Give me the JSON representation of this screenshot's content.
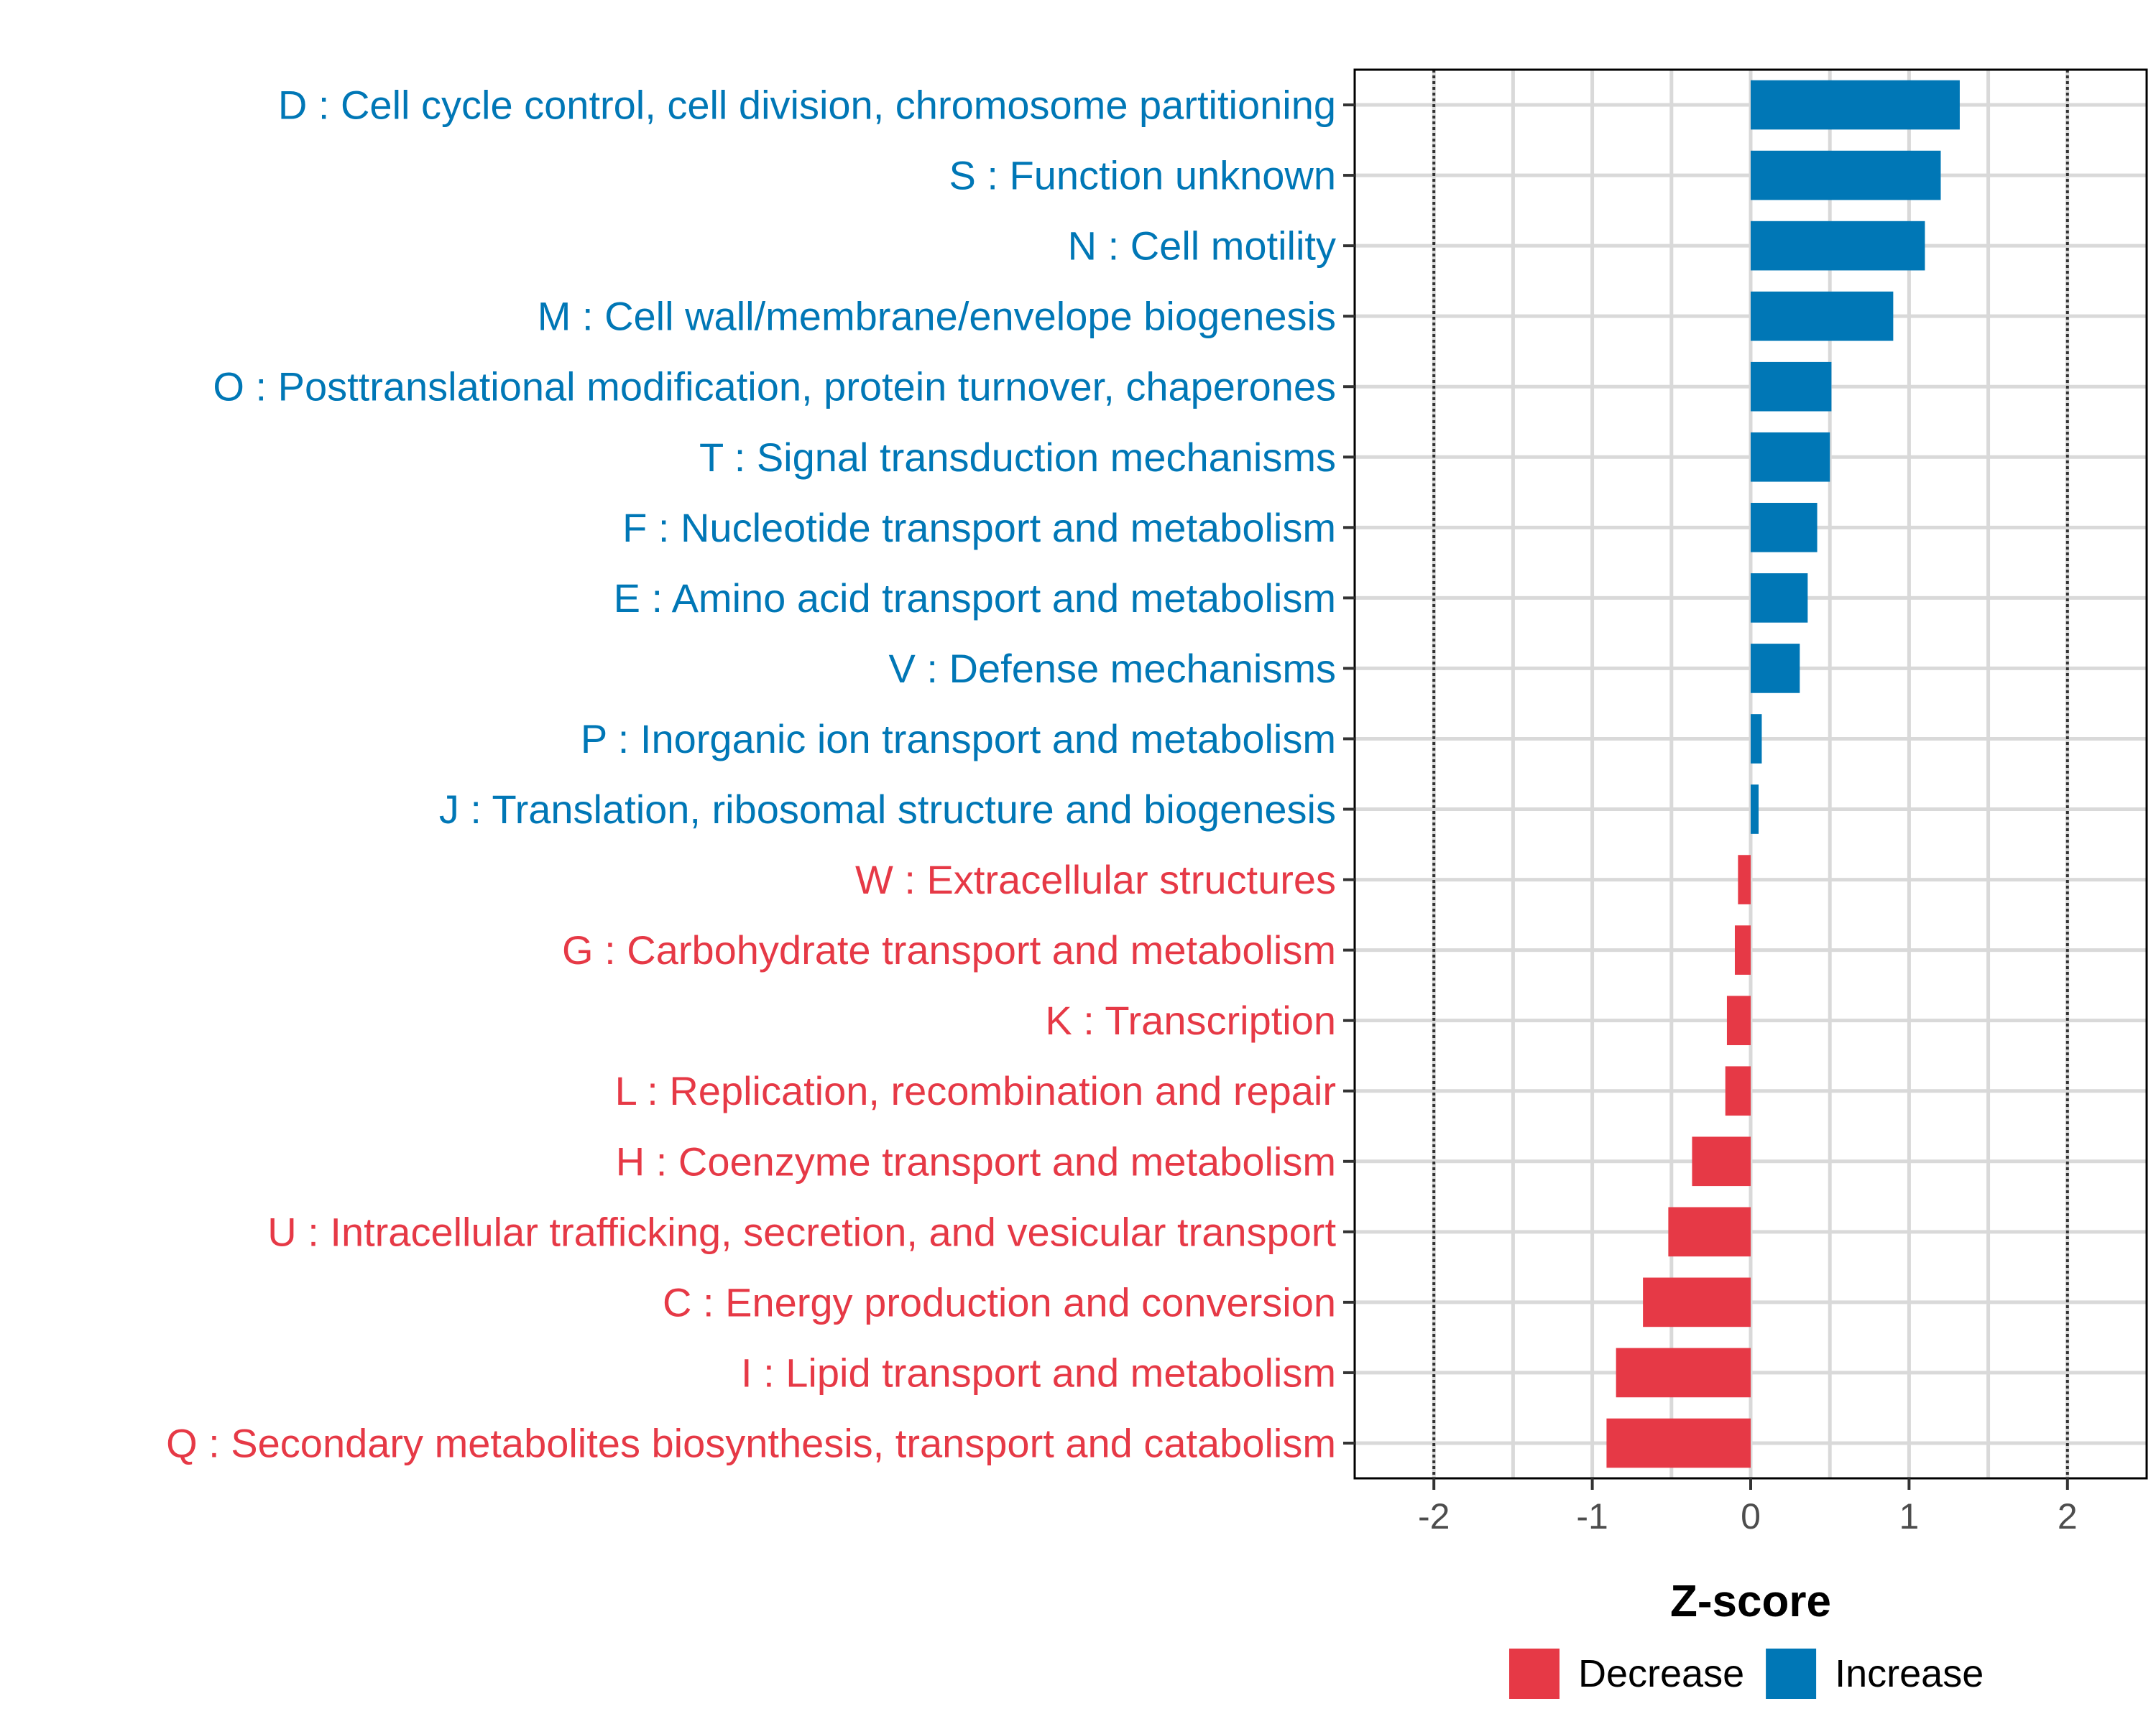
{
  "chart_data": {
    "type": "bar",
    "orientation": "horizontal",
    "title": "",
    "xlabel": "Z-score",
    "ylabel": "",
    "xlim": [
      -2.5,
      2.5
    ],
    "xticks": [
      -2,
      -1,
      0,
      1,
      2
    ],
    "xtick_labels": [
      "-2",
      "-1",
      "0",
      "1",
      "2"
    ],
    "reference_lines": [
      -2,
      2
    ],
    "grid": true,
    "legend_position": "bottom-right",
    "legend": [
      {
        "key": "Decrease",
        "label": "Decrease",
        "color": "#E63946"
      },
      {
        "key": "Increase",
        "label": "Increase",
        "color": "#0077B6"
      }
    ],
    "categories": [
      "D : Cell cycle control, cell division, chromosome partitioning",
      "S : Function unknown",
      "N : Cell motility",
      "M : Cell wall/membrane/envelope biogenesis",
      "O : Posttranslational modification, protein turnover, chaperones",
      "T : Signal transduction mechanisms",
      "F : Nucleotide transport and metabolism",
      "E : Amino acid transport and metabolism",
      "V : Defense mechanisms",
      "P : Inorganic ion transport and metabolism",
      "J : Translation, ribosomal structure and biogenesis",
      "W : Extracellular structures",
      "G : Carbohydrate transport and metabolism",
      "K : Transcription",
      "L : Replication, recombination and repair",
      "H : Coenzyme transport and metabolism",
      "U : Intracellular trafficking, secretion, and vesicular transport",
      "C : Energy production and conversion",
      "I : Lipid transport and metabolism",
      "Q : Secondary metabolites biosynthesis, transport and catabolism"
    ],
    "values": [
      1.32,
      1.2,
      1.1,
      0.9,
      0.51,
      0.5,
      0.42,
      0.36,
      0.31,
      0.07,
      0.05,
      -0.08,
      -0.1,
      -0.15,
      -0.16,
      -0.37,
      -0.52,
      -0.68,
      -0.85,
      -0.91
    ],
    "groups": [
      "Increase",
      "Increase",
      "Increase",
      "Increase",
      "Increase",
      "Increase",
      "Increase",
      "Increase",
      "Increase",
      "Increase",
      "Increase",
      "Decrease",
      "Decrease",
      "Decrease",
      "Decrease",
      "Decrease",
      "Decrease",
      "Decrease",
      "Decrease",
      "Decrease"
    ]
  }
}
